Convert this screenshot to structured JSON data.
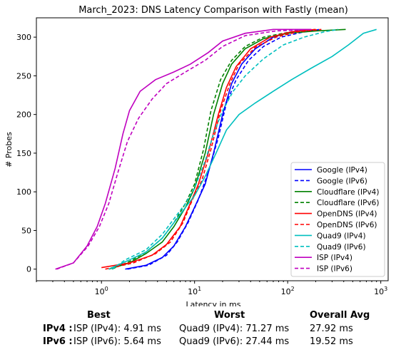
{
  "chart_data": {
    "type": "line",
    "title": "March_2023: DNS Latency Comparison with Fastly (mean)",
    "xlabel": "Latency in ms",
    "ylabel": "# Probes",
    "xscale": "log",
    "xlim": [
      0.2,
      1200
    ],
    "ylim": [
      -15,
      325
    ],
    "xticks": [
      1,
      10,
      100,
      1000
    ],
    "xtick_labels": [
      "10^0",
      "10^1",
      "10^2",
      "10^3"
    ],
    "yticks": [
      0,
      50,
      100,
      150,
      200,
      250,
      300
    ],
    "grid": false,
    "legend_position": "lower-right",
    "series": [
      {
        "name": "Google (IPv4)",
        "color": "#0000ff",
        "dash": "solid",
        "points": [
          [
            1.8,
            0
          ],
          [
            3,
            5
          ],
          [
            4.5,
            15
          ],
          [
            6,
            30
          ],
          [
            8,
            55
          ],
          [
            10,
            80
          ],
          [
            13,
            110
          ],
          [
            16,
            150
          ],
          [
            20,
            200
          ],
          [
            25,
            240
          ],
          [
            32,
            265
          ],
          [
            45,
            285
          ],
          [
            70,
            300
          ],
          [
            110,
            307
          ],
          [
            170,
            310
          ]
        ]
      },
      {
        "name": "Google (IPv6)",
        "color": "#0000ff",
        "dash": "dashed",
        "points": [
          [
            1.9,
            0
          ],
          [
            3.2,
            5
          ],
          [
            5,
            18
          ],
          [
            6.5,
            35
          ],
          [
            8.5,
            60
          ],
          [
            11,
            90
          ],
          [
            14,
            125
          ],
          [
            18,
            170
          ],
          [
            22,
            215
          ],
          [
            28,
            245
          ],
          [
            38,
            270
          ],
          [
            55,
            288
          ],
          [
            85,
            300
          ],
          [
            140,
            306
          ],
          [
            220,
            310
          ]
        ]
      },
      {
        "name": "Cloudflare (IPv4)",
        "color": "#008000",
        "dash": "solid",
        "points": [
          [
            1.2,
            0
          ],
          [
            2,
            8
          ],
          [
            3,
            20
          ],
          [
            4.5,
            35
          ],
          [
            6,
            55
          ],
          [
            8,
            80
          ],
          [
            10,
            105
          ],
          [
            13,
            150
          ],
          [
            16,
            200
          ],
          [
            20,
            240
          ],
          [
            25,
            265
          ],
          [
            35,
            285
          ],
          [
            55,
            298
          ],
          [
            100,
            305
          ],
          [
            200,
            308
          ],
          [
            420,
            310
          ]
        ]
      },
      {
        "name": "Cloudflare (IPv6)",
        "color": "#008000",
        "dash": "dashed",
        "points": [
          [
            1.3,
            0
          ],
          [
            2,
            10
          ],
          [
            3,
            22
          ],
          [
            4.5,
            40
          ],
          [
            6,
            60
          ],
          [
            8,
            85
          ],
          [
            10,
            110
          ],
          [
            12.5,
            155
          ],
          [
            15,
            205
          ],
          [
            19,
            245
          ],
          [
            25,
            270
          ],
          [
            35,
            288
          ],
          [
            55,
            300
          ],
          [
            100,
            306
          ],
          [
            200,
            310
          ]
        ]
      },
      {
        "name": "OpenDNS (IPv4)",
        "color": "#ff0000",
        "dash": "solid",
        "points": [
          [
            1,
            2
          ],
          [
            2,
            8
          ],
          [
            3.5,
            18
          ],
          [
            5,
            32
          ],
          [
            7,
            55
          ],
          [
            9,
            85
          ],
          [
            11,
            110
          ],
          [
            14,
            150
          ],
          [
            18,
            200
          ],
          [
            22,
            235
          ],
          [
            28,
            262
          ],
          [
            40,
            285
          ],
          [
            65,
            300
          ],
          [
            110,
            307
          ],
          [
            200,
            310
          ]
        ]
      },
      {
        "name": "OpenDNS (IPv6)",
        "color": "#ff0000",
        "dash": "dashed",
        "points": [
          [
            1.1,
            0
          ],
          [
            2.2,
            8
          ],
          [
            3.8,
            20
          ],
          [
            5.5,
            35
          ],
          [
            7.5,
            60
          ],
          [
            9.5,
            90
          ],
          [
            12,
            115
          ],
          [
            15,
            155
          ],
          [
            19,
            205
          ],
          [
            24,
            240
          ],
          [
            30,
            265
          ],
          [
            45,
            287
          ],
          [
            75,
            300
          ],
          [
            130,
            307
          ],
          [
            230,
            310
          ]
        ]
      },
      {
        "name": "Quad9 (IPv4)",
        "color": "#00bfbf",
        "dash": "solid",
        "points": [
          [
            1.2,
            0
          ],
          [
            2,
            12
          ],
          [
            3,
            22
          ],
          [
            4.5,
            40
          ],
          [
            6,
            60
          ],
          [
            8,
            80
          ],
          [
            10,
            95
          ],
          [
            13,
            120
          ],
          [
            17,
            150
          ],
          [
            22,
            180
          ],
          [
            30,
            200
          ],
          [
            45,
            215
          ],
          [
            70,
            230
          ],
          [
            110,
            245
          ],
          [
            180,
            260
          ],
          [
            300,
            275
          ],
          [
            450,
            290
          ],
          [
            650,
            305
          ],
          [
            900,
            310
          ]
        ]
      },
      {
        "name": "Quad9 (IPv6)",
        "color": "#00bfbf",
        "dash": "dashed",
        "points": [
          [
            1.3,
            0
          ],
          [
            1.8,
            12
          ],
          [
            3,
            25
          ],
          [
            4.5,
            45
          ],
          [
            6,
            65
          ],
          [
            8,
            85
          ],
          [
            10,
            105
          ],
          [
            13,
            140
          ],
          [
            16,
            175
          ],
          [
            20,
            205
          ],
          [
            26,
            230
          ],
          [
            35,
            250
          ],
          [
            55,
            272
          ],
          [
            90,
            290
          ],
          [
            150,
            300
          ],
          [
            250,
            307
          ],
          [
            350,
            310
          ]
        ]
      },
      {
        "name": "ISP (IPv4)",
        "color": "#bf00bf",
        "dash": "solid",
        "points": [
          [
            0.32,
            0
          ],
          [
            0.5,
            8
          ],
          [
            0.7,
            30
          ],
          [
            0.9,
            55
          ],
          [
            1.1,
            85
          ],
          [
            1.4,
            130
          ],
          [
            1.7,
            175
          ],
          [
            2,
            205
          ],
          [
            2.6,
            230
          ],
          [
            3.8,
            245
          ],
          [
            6,
            255
          ],
          [
            9,
            265
          ],
          [
            14,
            280
          ],
          [
            20,
            295
          ],
          [
            35,
            305
          ],
          [
            70,
            310
          ],
          [
            180,
            310
          ]
        ]
      },
      {
        "name": "ISP (IPv6)",
        "color": "#bf00bf",
        "dash": "dashed",
        "points": [
          [
            0.33,
            0
          ],
          [
            0.5,
            8
          ],
          [
            0.72,
            30
          ],
          [
            0.95,
            55
          ],
          [
            1.2,
            85
          ],
          [
            1.5,
            125
          ],
          [
            1.9,
            165
          ],
          [
            2.5,
            195
          ],
          [
            3.5,
            220
          ],
          [
            5,
            240
          ],
          [
            8,
            255
          ],
          [
            13,
            270
          ],
          [
            20,
            288
          ],
          [
            35,
            302
          ],
          [
            75,
            308
          ],
          [
            180,
            310
          ]
        ]
      }
    ]
  },
  "summary": {
    "headers": {
      "best": "Best",
      "worst": "Worst",
      "overall": "Overall Avg"
    },
    "rows": [
      {
        "label": "IPv4 :",
        "best": "ISP (IPv4): 4.91 ms",
        "worst": "Quad9 (IPv4): 71.27 ms",
        "overall": "27.92 ms"
      },
      {
        "label": "IPv6 :",
        "best": "ISP (IPv6): 5.64 ms",
        "worst": "Quad9 (IPv6): 27.44 ms",
        "overall": "19.52 ms"
      }
    ]
  }
}
